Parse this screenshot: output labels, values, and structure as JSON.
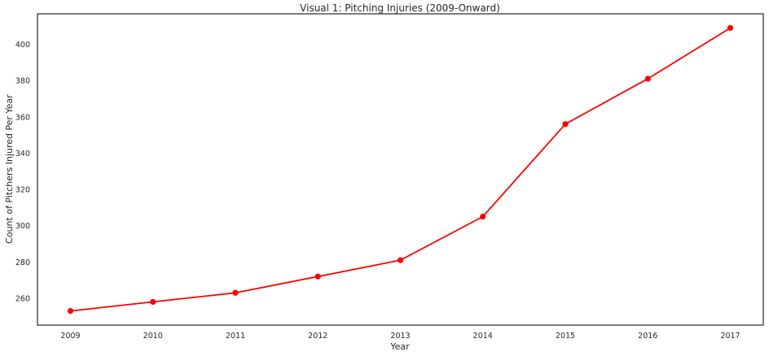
{
  "chart_data": {
    "type": "line",
    "title": "Visual 1: Pitching Injuries (2009-Onward)",
    "xlabel": "Year",
    "ylabel": "Count of Pitchers Injured Per Year",
    "x": [
      2009,
      2010,
      2011,
      2012,
      2013,
      2014,
      2015,
      2016,
      2017
    ],
    "x_tick_labels": [
      "2009",
      "2010",
      "2011",
      "2012",
      "2013",
      "2014",
      "2015",
      "2016",
      "2017"
    ],
    "y_ticks": [
      260,
      280,
      300,
      320,
      340,
      360,
      380,
      400
    ],
    "y_tick_labels": [
      "260",
      "280",
      "300",
      "320",
      "340",
      "360",
      "380",
      "400"
    ],
    "series": [
      {
        "values": [
          253,
          258,
          263,
          272,
          281,
          305,
          356,
          381,
          409
        ],
        "color": "#ff0000",
        "marker": "circle"
      }
    ],
    "xlim": [
      2008.6,
      2017.4
    ],
    "ylim": [
      245.2,
      416.8
    ],
    "grid": false,
    "legend": "none"
  }
}
